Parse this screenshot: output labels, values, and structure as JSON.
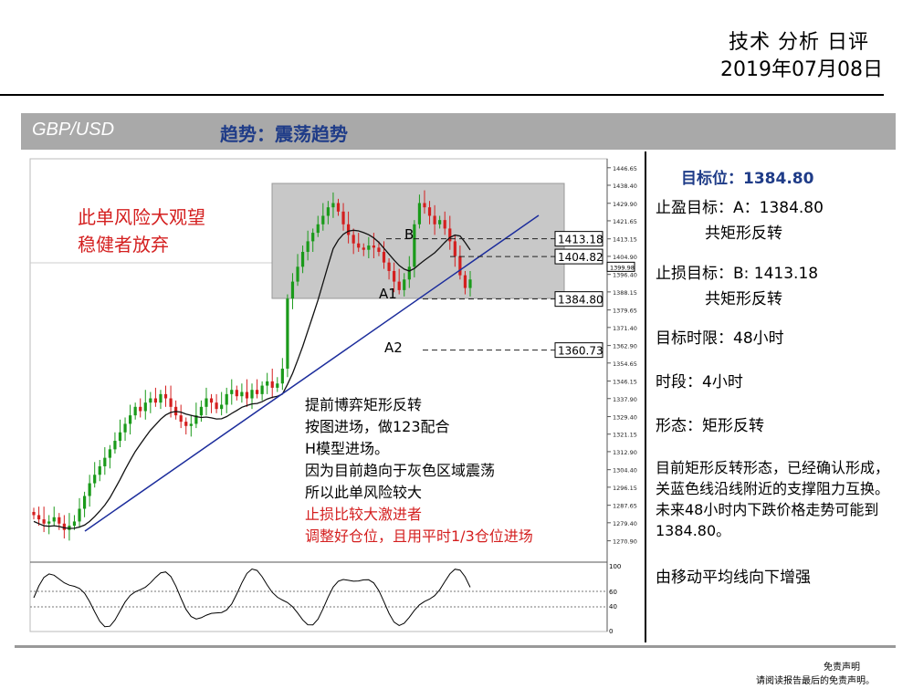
{
  "header": {
    "title": "技术 分析 日评",
    "date": "2019年07月08日"
  },
  "banner": {
    "pair": "GBP/USD",
    "trend": "趋势：震荡趋势"
  },
  "chart": {
    "risk_line1": "此单风险大观望",
    "risk_line2": "稳健者放弃",
    "label_b": "B",
    "label_a1": "A1",
    "label_a2": "A2",
    "level_b": "1413.18",
    "level_mid": "1404.82",
    "level_a1": "1384.80",
    "level_a2": "1360.73",
    "current_price": "1399.98",
    "note_lines": [
      "提前博弈矩形反转",
      "按图进场，做123配合",
      "H模型进场。",
      "因为目前趋向于灰色区域震荡",
      "所以此单风险较大"
    ],
    "note_red_lines": [
      "止损比较大激进者",
      "调整好仓位，且用平时1/3仓位进场"
    ],
    "osc_labels": [
      "100",
      "60",
      "40",
      "0"
    ]
  },
  "chart_data": {
    "type": "candlestick",
    "symbol": "GBP/USD",
    "y_axis_ticks": [
      "1446.65",
      "1438.40",
      "1429.90",
      "1421.65",
      "1413.15",
      "1404.90",
      "1396.40",
      "1388.15",
      "1379.65",
      "1371.40",
      "1362.90",
      "1354.65",
      "1346.15",
      "1337.90",
      "1329.40",
      "1321.15",
      "1312.90",
      "1304.40",
      "1296.15",
      "1287.65",
      "1279.40",
      "1270.90"
    ],
    "ylim": [
      1266.0,
      1450.0
    ],
    "horizontal_levels": [
      {
        "label": "B",
        "value": 1413.18
      },
      {
        "label": "",
        "value": 1404.82
      },
      {
        "label": "A1",
        "value": 1384.8
      },
      {
        "label": "A2",
        "value": 1360.73
      }
    ],
    "rectangle_zone": {
      "top": 1435.0,
      "bottom": 1384.0
    },
    "close_series": [
      1283,
      1281,
      1279,
      1280,
      1282,
      1279,
      1276,
      1278,
      1280,
      1286,
      1292,
      1298,
      1302,
      1306,
      1310,
      1314,
      1318,
      1322,
      1326,
      1330,
      1334,
      1332,
      1336,
      1338,
      1336,
      1340,
      1338,
      1334,
      1330,
      1327,
      1325,
      1326,
      1330,
      1334,
      1338,
      1336,
      1333,
      1335,
      1340,
      1342,
      1339,
      1341,
      1338,
      1342,
      1340,
      1344,
      1346,
      1343,
      1345,
      1352,
      1385,
      1393,
      1400,
      1407,
      1412,
      1416,
      1420,
      1424,
      1428,
      1430,
      1426,
      1420,
      1415,
      1411,
      1409,
      1408,
      1410,
      1409,
      1407,
      1402,
      1398,
      1393,
      1389,
      1394,
      1400,
      1420,
      1430,
      1428,
      1424,
      1420,
      1422,
      1418,
      1412,
      1405,
      1396,
      1390,
      1394
    ]
  },
  "right_panel": {
    "target_label": "目标位：",
    "target_value": "1384.80",
    "tp_line": "止盈目标：A：1384.80",
    "tp_sub": "共矩形反转",
    "sl_line": "止损目标：B:  1413.18",
    "sl_sub": "共矩形反转",
    "time_limit": "目标时限：48小时",
    "period": "时段：4小时",
    "pattern": "形态：矩形反转",
    "description": "目前矩形反转形态，已经确认形成，关蓝色线沿线附近的支撑阻力互换。未来48小时内下跌价格走势可能到1384.80。",
    "ma_note": "由移动平均线向下增强"
  },
  "footer": {
    "disclaimer_title": "免责声明",
    "disclaimer_text": "请阅读报告最后的免责声明。"
  },
  "colors": {
    "up": "#1a9a1a",
    "down": "#d41f1f",
    "trendline": "#1c2d9c",
    "zone": "#c8c8c8",
    "banner": "#a9a9a9",
    "target": "#1f3c88",
    "risk": "#d41f1f"
  }
}
